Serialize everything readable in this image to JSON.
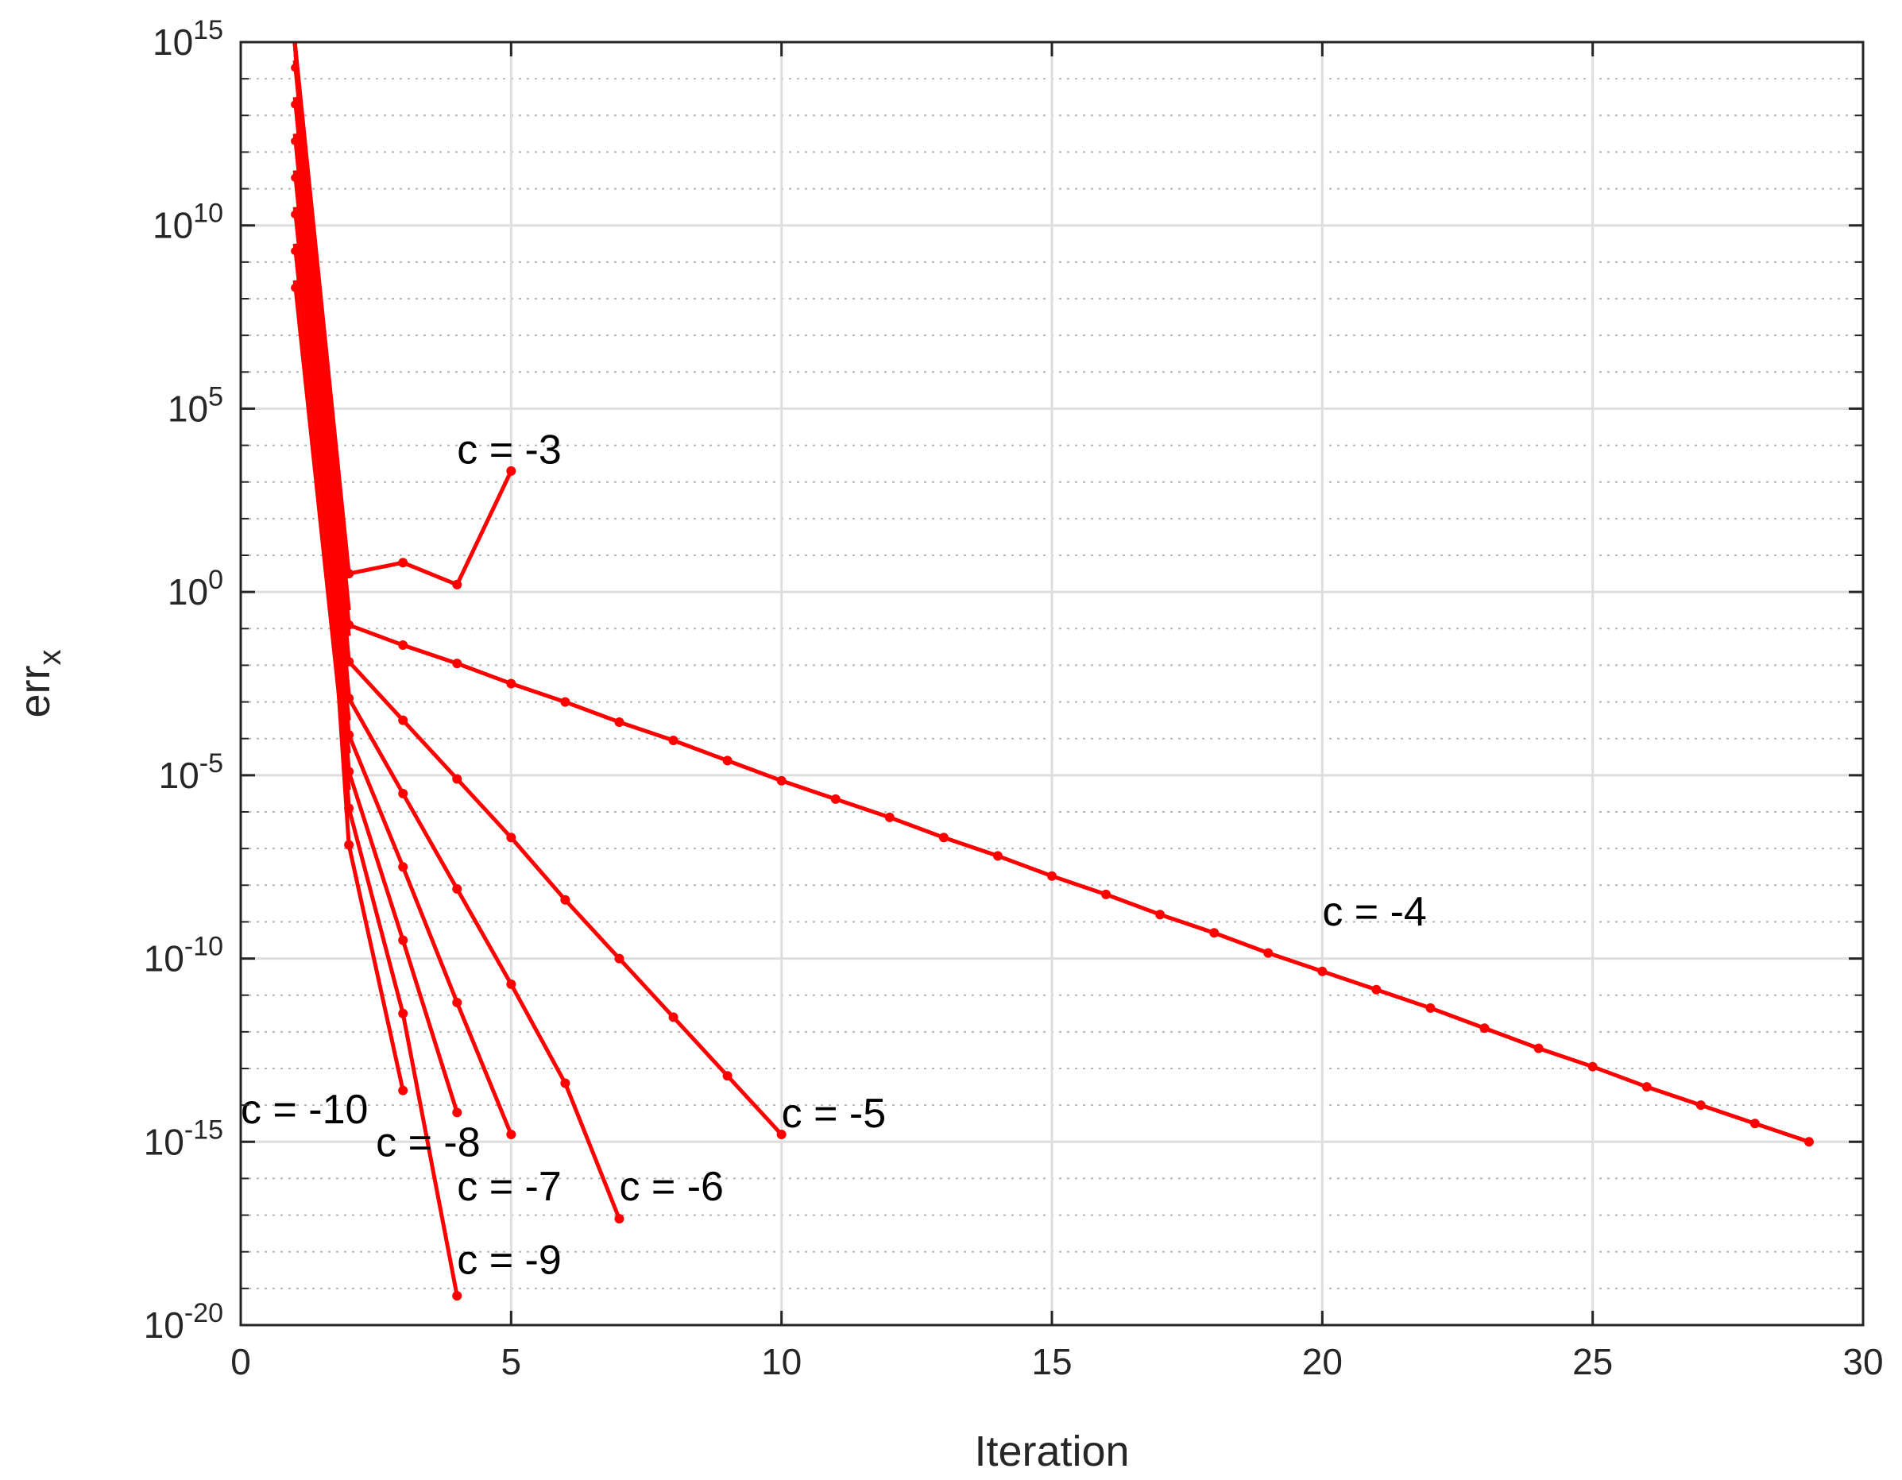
{
  "chart_data": {
    "type": "line",
    "xlabel": "Iteration",
    "ylabel": {
      "base": "err",
      "sub": "x"
    },
    "xlim": [
      0,
      30
    ],
    "ylim_exponent": [
      -20,
      15
    ],
    "yscale": "log",
    "grid": true,
    "x_ticks": [
      0,
      5,
      10,
      15,
      20,
      25,
      30
    ],
    "y_ticks": [
      {
        "base": "10",
        "exp": "-20",
        "value": -20
      },
      {
        "base": "10",
        "exp": "-15",
        "value": -15
      },
      {
        "base": "10",
        "exp": "-10",
        "value": -10
      },
      {
        "base": "10",
        "exp": "-5",
        "value": -5
      },
      {
        "base": "10",
        "exp": "0",
        "value": 0
      },
      {
        "base": "10",
        "exp": "5",
        "value": 5
      },
      {
        "base": "10",
        "exp": "10",
        "value": 10
      },
      {
        "base": "10",
        "exp": "15",
        "value": 15
      }
    ],
    "line_color": "#ff0000",
    "series": [
      {
        "label": "c = -3",
        "label_at": [
          4,
          3.5
        ],
        "x": [
          1,
          2,
          3,
          4,
          5
        ],
        "log10_y": [
          15,
          0.5,
          0.8,
          0.2,
          3.3
        ]
      },
      {
        "label": "c = -4",
        "label_at": [
          20,
          -9.1
        ],
        "x": [
          1,
          2,
          3,
          4,
          5,
          6,
          7,
          8,
          9,
          10,
          11,
          12,
          13,
          14,
          15,
          16,
          17,
          18,
          19,
          20,
          21,
          22,
          23,
          24,
          25,
          26,
          27,
          28,
          29
        ],
        "log10_y": [
          15,
          -0.9,
          -1.45,
          -1.95,
          -2.5,
          -3.0,
          -3.55,
          -4.05,
          -4.6,
          -5.15,
          -5.65,
          -6.15,
          -6.7,
          -7.2,
          -7.75,
          -8.25,
          -8.8,
          -9.3,
          -9.85,
          -10.35,
          -10.85,
          -11.35,
          -11.9,
          -12.45,
          -12.95,
          -13.5,
          -14.0,
          -14.5,
          -15.0
        ]
      },
      {
        "label": "c = -5",
        "label_at": [
          10,
          -14.6
        ],
        "x": [
          1,
          2,
          3,
          4,
          5,
          6,
          7,
          8,
          9,
          10
        ],
        "log10_y": [
          15,
          -1.9,
          -3.5,
          -5.1,
          -6.7,
          -8.4,
          -10.0,
          -11.6,
          -13.2,
          -14.8
        ]
      },
      {
        "label": "c = -6",
        "label_at": [
          7,
          -16.6
        ],
        "x": [
          1,
          2,
          3,
          4,
          5,
          6,
          7
        ],
        "log10_y": [
          15,
          -2.9,
          -5.5,
          -8.1,
          -10.7,
          -13.4,
          -17.1
        ]
      },
      {
        "label": "c = -7",
        "label_at": [
          4,
          -16.6
        ],
        "x": [
          1,
          2,
          3,
          4,
          5
        ],
        "log10_y": [
          15,
          -3.9,
          -7.5,
          -11.2,
          -14.8
        ]
      },
      {
        "label": "c = -8",
        "label_at": [
          2.5,
          -15.4
        ],
        "x": [
          1,
          2,
          3,
          4
        ],
        "log10_y": [
          15,
          -4.9,
          -9.5,
          -14.2
        ]
      },
      {
        "label": "c = -9",
        "label_at": [
          4,
          -18.6
        ],
        "x": [
          1,
          2,
          3,
          4
        ],
        "log10_y": [
          15,
          -5.9,
          -11.5,
          -19.2
        ]
      },
      {
        "label": "c = -10",
        "label_at": [
          0,
          -14.5
        ],
        "x": [
          1,
          2,
          3
        ],
        "log10_y": [
          15,
          -6.9,
          -13.6
        ]
      }
    ],
    "overflow_points": {
      "x": 1,
      "log10_y": [
        14.3,
        13.3,
        12.3,
        11.3,
        10.3,
        9.3,
        8.3
      ]
    }
  }
}
